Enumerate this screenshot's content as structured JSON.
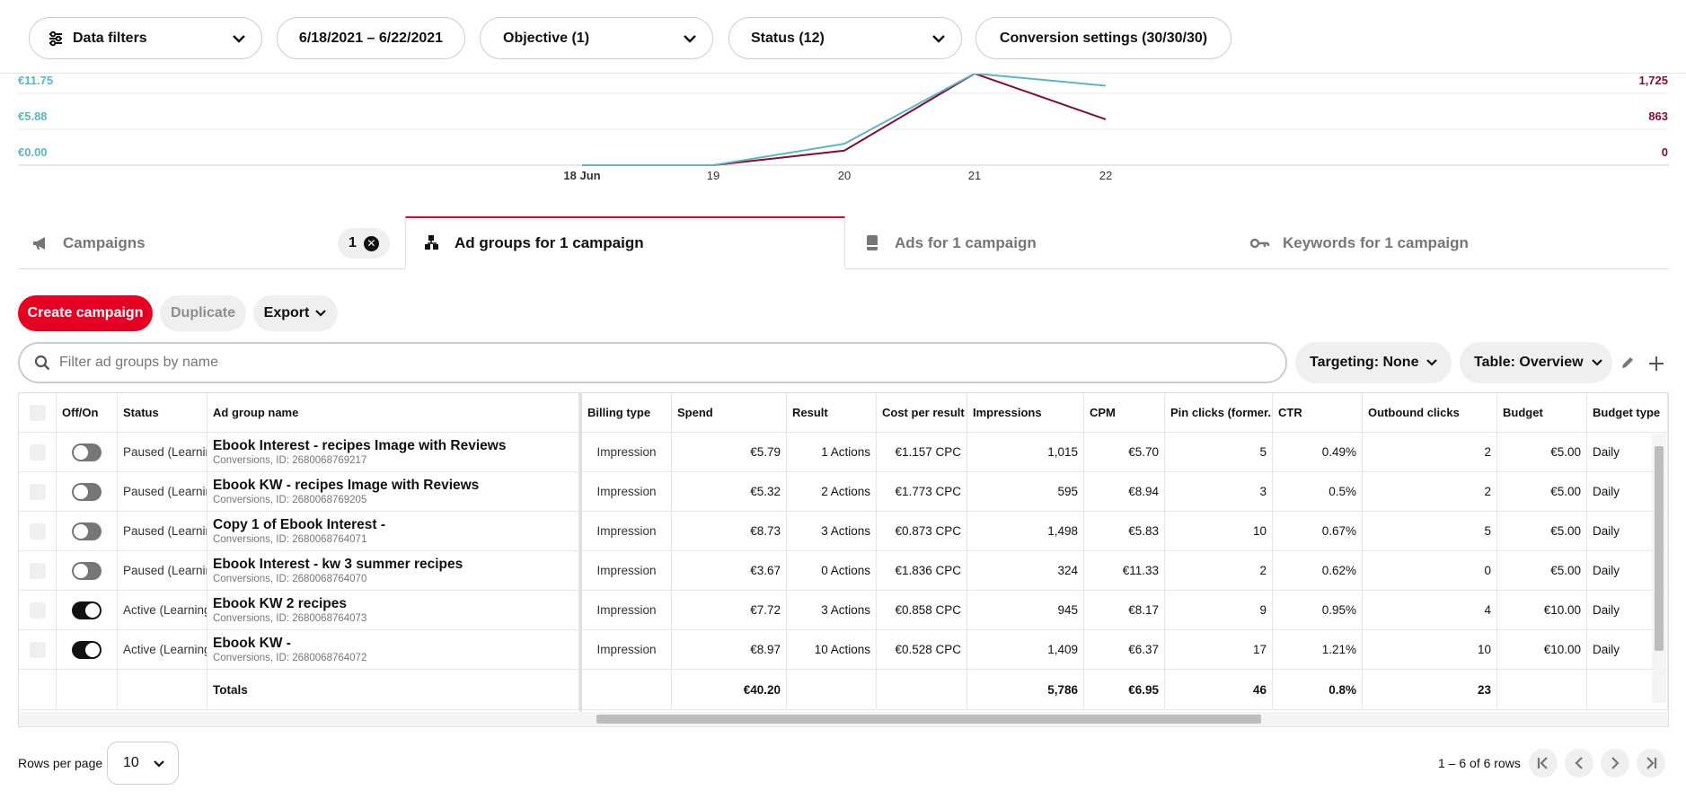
{
  "filters": {
    "data_filters": "Data filters",
    "date_range": "6/18/2021 – 6/22/2021",
    "objective": "Objective (1)",
    "status": "Status (12)",
    "conversion": "Conversion settings (30/30/30)"
  },
  "chart_data": {
    "type": "line",
    "x": [
      "18 Jun",
      "19",
      "20",
      "21",
      "22"
    ],
    "left_axis_ticks": [
      "€11.75",
      "€5.88",
      "€0.00"
    ],
    "right_axis_ticks": [
      "1,725",
      "863",
      "0"
    ],
    "series": [
      {
        "color": "#7d0f3a",
        "values": [
          0,
          0,
          350,
          2200,
          1100
        ]
      },
      {
        "color": "#5fb4c0",
        "values": [
          0,
          0,
          3.5,
          15,
          13
        ]
      }
    ],
    "colors": {
      "left_axis": "#5fb4c0",
      "right_axis": "#7d0f3a"
    }
  },
  "tabs": {
    "campaigns": "Campaigns",
    "campaigns_count": "1",
    "ad_groups": "Ad groups for 1 campaign",
    "ads": "Ads for 1 campaign",
    "keywords": "Keywords for 1 campaign"
  },
  "actions": {
    "create": "Create campaign",
    "duplicate": "Duplicate",
    "export": "Export"
  },
  "search": {
    "placeholder": "Filter ad groups by name"
  },
  "table_controls": {
    "targeting": "Targeting: None",
    "table": "Table: Overview"
  },
  "columns": [
    "Off/On",
    "Status",
    "Ad group name",
    "Billing type",
    "Spend",
    "Result",
    "Cost per result",
    "Impressions",
    "CPM",
    "Pin clicks (former...",
    "CTR",
    "Outbound clicks",
    "Budget",
    "Budget type"
  ],
  "rows": [
    {
      "on": false,
      "status": "Paused (Learning)",
      "name": "Ebook Interest - recipes Image with Reviews",
      "sub": "Conversions, ID: 2680068769217",
      "billing": "Impression",
      "spend": "€5.79",
      "result": "1 Actions",
      "cpr": "€1.157 CPC",
      "impressions": "1,015",
      "cpm": "€5.70",
      "pin_clicks": "5",
      "ctr": "0.49%",
      "outbound": "2",
      "budget": "€5.00",
      "budget_type": "Daily"
    },
    {
      "on": false,
      "status": "Paused (Learning)",
      "name": "Ebook KW - recipes Image with Reviews",
      "sub": "Conversions, ID: 2680068769205",
      "billing": "Impression",
      "spend": "€5.32",
      "result": "2 Actions",
      "cpr": "€1.773 CPC",
      "impressions": "595",
      "cpm": "€8.94",
      "pin_clicks": "3",
      "ctr": "0.5%",
      "outbound": "2",
      "budget": "€5.00",
      "budget_type": "Daily"
    },
    {
      "on": false,
      "status": "Paused (Learning)",
      "name": "Copy 1 of Ebook Interest -",
      "sub": "Conversions, ID: 2680068764071",
      "billing": "Impression",
      "spend": "€8.73",
      "result": "3 Actions",
      "cpr": "€0.873 CPC",
      "impressions": "1,498",
      "cpm": "€5.83",
      "pin_clicks": "10",
      "ctr": "0.67%",
      "outbound": "5",
      "budget": "€5.00",
      "budget_type": "Daily"
    },
    {
      "on": false,
      "status": "Paused (Learning)",
      "name": "Ebook Interest - kw 3 summer recipes",
      "sub": "Conversions, ID: 2680068764070",
      "billing": "Impression",
      "spend": "€3.67",
      "result": "0 Actions",
      "cpr": "€1.836 CPC",
      "impressions": "324",
      "cpm": "€11.33",
      "pin_clicks": "2",
      "ctr": "0.62%",
      "outbound": "0",
      "budget": "€5.00",
      "budget_type": "Daily"
    },
    {
      "on": true,
      "status": "Active (Learning)",
      "name": "Ebook KW 2 recipes",
      "sub": "Conversions, ID: 2680068764073",
      "billing": "Impression",
      "spend": "€7.72",
      "result": "3 Actions",
      "cpr": "€0.858 CPC",
      "impressions": "945",
      "cpm": "€8.17",
      "pin_clicks": "9",
      "ctr": "0.95%",
      "outbound": "4",
      "budget": "€10.00",
      "budget_type": "Daily"
    },
    {
      "on": true,
      "status": "Active (Learning)",
      "name": "Ebook KW -",
      "sub": "Conversions, ID: 2680068764072",
      "billing": "Impression",
      "spend": "€8.97",
      "result": "10 Actions",
      "cpr": "€0.528 CPC",
      "impressions": "1,409",
      "cpm": "€6.37",
      "pin_clicks": "17",
      "ctr": "1.21%",
      "outbound": "10",
      "budget": "€10.00",
      "budget_type": "Daily"
    }
  ],
  "totals": {
    "label": "Totals",
    "spend": "€40.20",
    "impressions": "5,786",
    "cpm": "€6.95",
    "pin_clicks": "46",
    "ctr": "0.8%",
    "outbound": "23"
  },
  "footer": {
    "rows_per_page_label": "Rows per page",
    "rows_per_page": "10",
    "range": "1 – 6 of 6 rows"
  }
}
